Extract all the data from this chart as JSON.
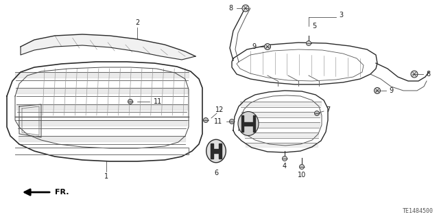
{
  "bg_color": "#ffffff",
  "line_color": "#2a2a2a",
  "diagram_code": "TE1484500"
}
